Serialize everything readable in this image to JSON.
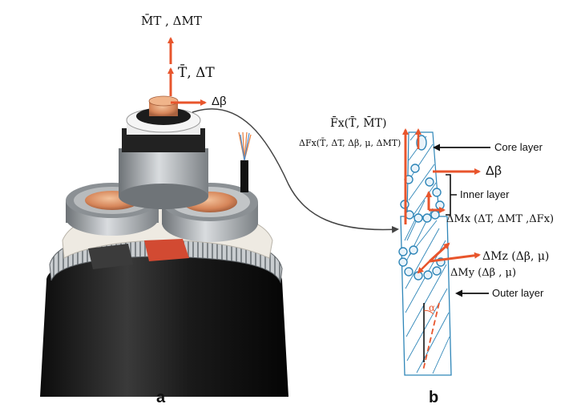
{
  "panel_a": {
    "label": "a",
    "labels": {
      "moment_top": "M̄T , ΔMT",
      "tension": "T̄, ΔT",
      "delta_beta": "Δβ"
    }
  },
  "panel_b": {
    "label": "b",
    "labels": {
      "fx_mean": "F̄x(T̄, M̄T)",
      "fx_delta": "ΔFx(T̄, ΔT, Δβ, μ, ΔMT)",
      "core_layer": "Core layer",
      "delta_beta": "Δβ",
      "inner_layer": "Inner layer",
      "mx": "ΔMx (ΔT,  ΔMT ,ΔFx)",
      "mz": "ΔMz (Δβ, μ)",
      "my": "ΔMy (Δβ , μ)",
      "outer_layer": "Outer layer",
      "alpha": "α"
    }
  },
  "colors": {
    "arrow": "#e8552c",
    "strand": "#2f86b8",
    "jacket": "#1b1b1b",
    "copper": "#d98a5a",
    "armor": "#b8bcc0"
  }
}
